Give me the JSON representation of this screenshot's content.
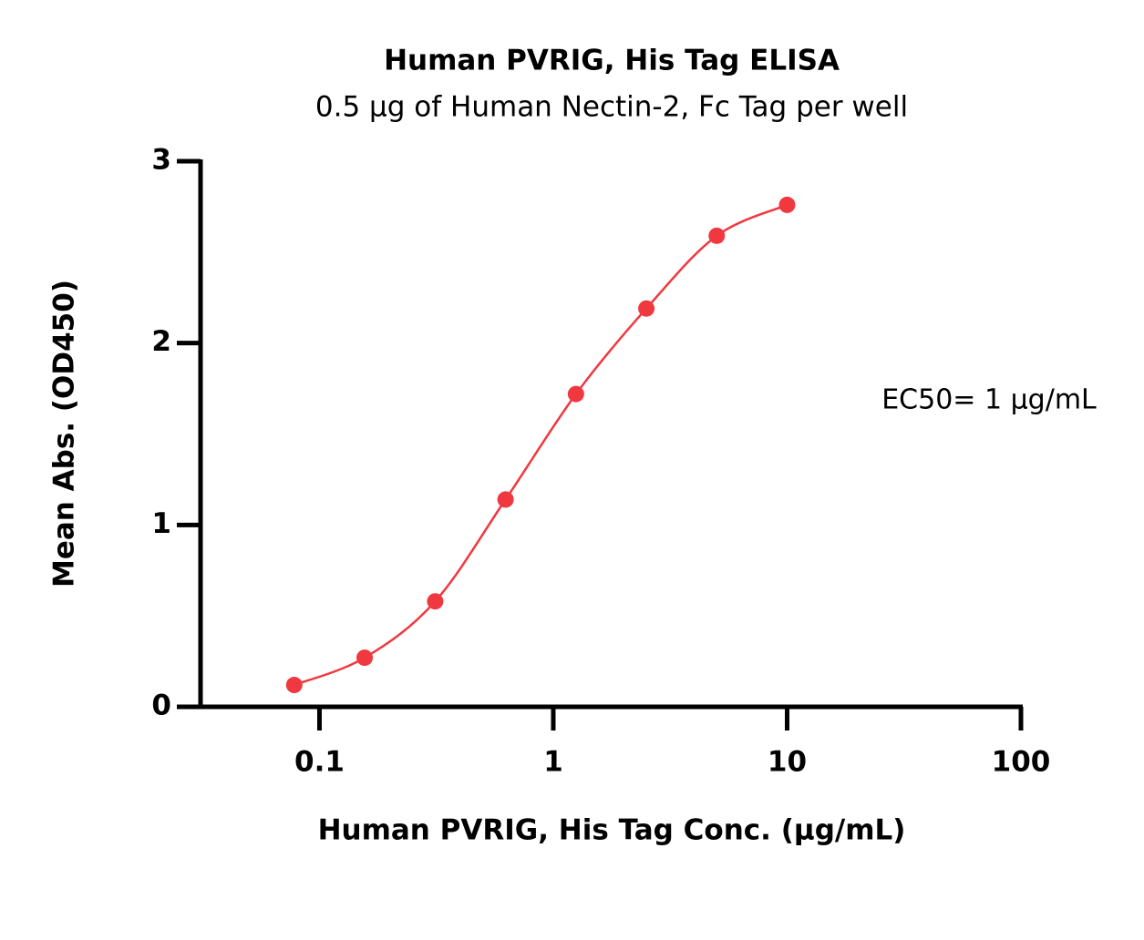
{
  "chart_data": {
    "type": "line",
    "title": "Human PVRIG, His Tag ELISA",
    "subtitle": "0.5 µg of Human Nectin-2, Fc Tag per well",
    "x_label": "Human PVRIG, His Tag Conc. (µg/mL)",
    "y_label": "Mean Abs. (OD450)",
    "annotation": "EC50= 1 µg/mL",
    "x_scale": "log",
    "x": [
      0.078,
      0.156,
      0.3125,
      0.625,
      1.25,
      2.5,
      5,
      10
    ],
    "series": [
      {
        "name": "Human PVRIG, His Tag",
        "color": "#f0383f",
        "values": [
          0.12,
          0.27,
          0.58,
          1.14,
          1.72,
          2.19,
          2.59,
          2.76
        ]
      }
    ],
    "xlim": [
      0.031,
      100
    ],
    "xticks": [
      0.1,
      1,
      10,
      100
    ],
    "ylim": [
      0,
      3
    ],
    "yticks": [
      0,
      1,
      2,
      3
    ],
    "grid": false,
    "legend": false
  }
}
